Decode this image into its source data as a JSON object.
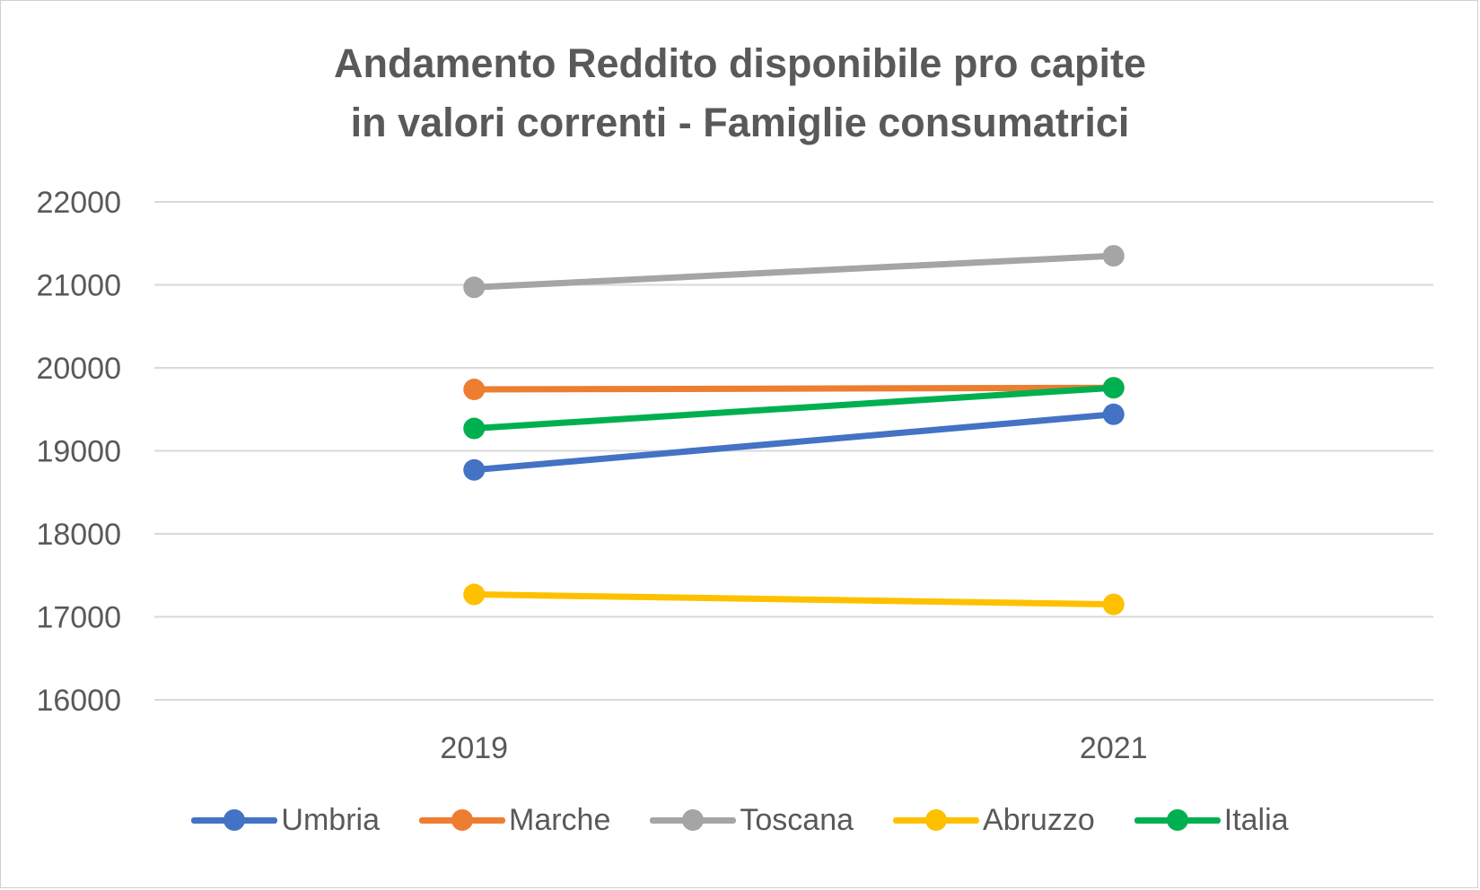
{
  "chart_data": {
    "type": "line",
    "title_lines": [
      "Andamento Reddito disponibile pro capite",
      "in valori correnti - Famiglie consumatrici"
    ],
    "xlabel": "",
    "ylabel": "",
    "categories": [
      "2019",
      "2021"
    ],
    "ylim": [
      16000,
      22000
    ],
    "yticks": [
      16000,
      17000,
      18000,
      19000,
      20000,
      21000,
      22000
    ],
    "grid": true,
    "legend_position": "bottom",
    "series": [
      {
        "name": "Umbria",
        "color": "#4472C4",
        "values": [
          18770,
          19440
        ]
      },
      {
        "name": "Marche",
        "color": "#ED7D31",
        "values": [
          19740,
          19760
        ]
      },
      {
        "name": "Toscana",
        "color": "#A5A5A5",
        "values": [
          20970,
          21350
        ]
      },
      {
        "name": "Abruzzo",
        "color": "#FFC000",
        "values": [
          17270,
          17150
        ]
      },
      {
        "name": "Italia",
        "color": "#00B050",
        "values": [
          19270,
          19760
        ]
      }
    ]
  }
}
